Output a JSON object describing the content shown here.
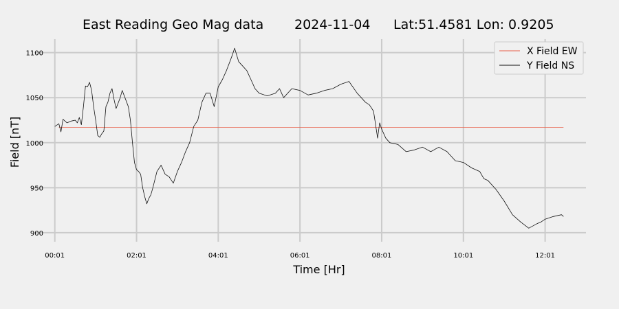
{
  "chart_data": {
    "type": "line",
    "title": {
      "name": "East Reading Geo Mag data",
      "date": "2024-11-04",
      "location": "Lat:51.4581  Lon: 0.9205"
    },
    "xlabel": "Time  [Hr]",
    "ylabel": "Field  [nT]",
    "x_ticks": [
      "00:01",
      "02:01",
      "04:01",
      "06:01",
      "08:01",
      "10:01",
      "12:01"
    ],
    "y_ticks": [
      900,
      950,
      1000,
      1050,
      1100
    ],
    "xlim": [
      -0.5,
      13.0
    ],
    "ylim": [
      890,
      1115
    ],
    "grid": true,
    "legend_position": "top-right",
    "series": [
      {
        "name": "X Field EW",
        "color": "#e8604a",
        "x": [
          0.1,
          12.45
        ],
        "y": [
          1017,
          1017
        ]
      },
      {
        "name": "Y Field NS",
        "color": "#111111",
        "x": [
          0.0,
          0.1,
          0.15,
          0.2,
          0.3,
          0.4,
          0.5,
          0.55,
          0.6,
          0.65,
          0.7,
          0.75,
          0.8,
          0.85,
          0.9,
          0.95,
          1.0,
          1.05,
          1.1,
          1.15,
          1.2,
          1.25,
          1.3,
          1.35,
          1.4,
          1.45,
          1.5,
          1.6,
          1.65,
          1.7,
          1.8,
          1.85,
          1.9,
          1.95,
          2.0,
          2.05,
          2.1,
          2.15,
          2.2,
          2.25,
          2.3,
          2.35,
          2.4,
          2.5,
          2.6,
          2.7,
          2.8,
          2.9,
          3.0,
          3.1,
          3.2,
          3.3,
          3.4,
          3.5,
          3.6,
          3.7,
          3.8,
          3.9,
          4.0,
          4.1,
          4.2,
          4.3,
          4.35,
          4.4,
          4.5,
          4.6,
          4.7,
          4.8,
          4.9,
          5.0,
          5.2,
          5.4,
          5.5,
          5.6,
          5.8,
          6.0,
          6.2,
          6.4,
          6.6,
          6.8,
          7.0,
          7.2,
          7.4,
          7.6,
          7.7,
          7.8,
          7.85,
          7.9,
          7.95,
          8.0,
          8.1,
          8.2,
          8.4,
          8.6,
          8.8,
          9.0,
          9.2,
          9.4,
          9.6,
          9.8,
          10.0,
          10.2,
          10.4,
          10.5,
          10.6,
          10.8,
          11.0,
          11.2,
          11.4,
          11.6,
          11.8,
          11.9,
          12.0,
          12.2,
          12.4,
          12.45
        ],
        "y": [
          1018,
          1021,
          1012,
          1026,
          1022,
          1024,
          1025,
          1022,
          1028,
          1020,
          1040,
          1063,
          1062,
          1067,
          1058,
          1040,
          1025,
          1008,
          1006,
          1010,
          1013,
          1040,
          1045,
          1055,
          1060,
          1048,
          1038,
          1050,
          1058,
          1052,
          1040,
          1025,
          1000,
          978,
          970,
          968,
          965,
          950,
          940,
          932,
          938,
          942,
          950,
          968,
          975,
          965,
          962,
          955,
          968,
          978,
          990,
          1000,
          1018,
          1025,
          1045,
          1055,
          1055,
          1040,
          1062,
          1070,
          1080,
          1092,
          1098,
          1105,
          1090,
          1085,
          1080,
          1070,
          1060,
          1055,
          1052,
          1055,
          1060,
          1050,
          1060,
          1058,
          1053,
          1055,
          1058,
          1060,
          1065,
          1068,
          1055,
          1045,
          1042,
          1035,
          1020,
          1005,
          1022,
          1015,
          1005,
          1000,
          998,
          990,
          992,
          995,
          990,
          995,
          990,
          980,
          978,
          972,
          968,
          960,
          958,
          948,
          935,
          920,
          912,
          905,
          910,
          912,
          915,
          918,
          920,
          918
        ]
      }
    ]
  }
}
